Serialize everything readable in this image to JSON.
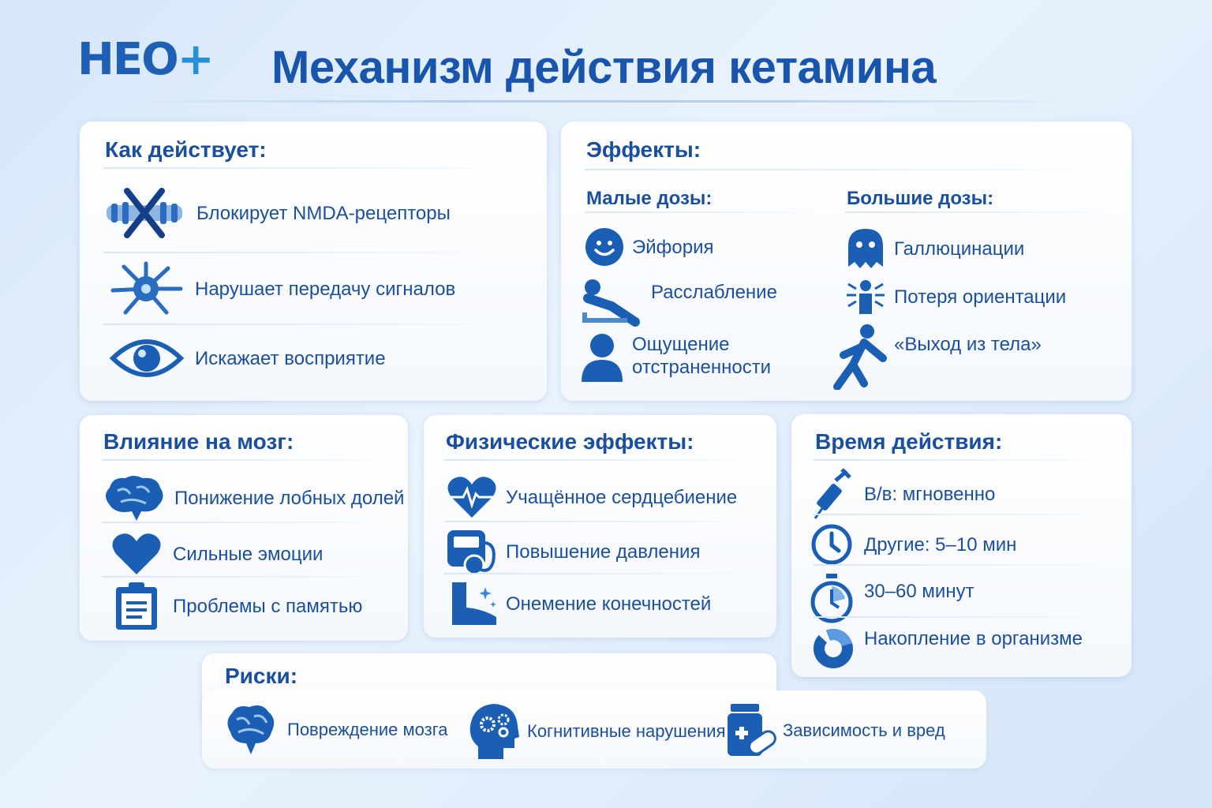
{
  "logo": {
    "text": "НЕО",
    "plus": "+"
  },
  "title": "Механизм действия кетамина",
  "how": {
    "heading": "Как действует:",
    "items": [
      {
        "icon": "blocked-receptor-icon",
        "label": "Блокирует NMDA-рецепторы"
      },
      {
        "icon": "neuron-icon",
        "label": "Нарушает передачу сигналов"
      },
      {
        "icon": "eye-icon",
        "label": "Искажает восприятие"
      }
    ]
  },
  "effects": {
    "heading": "Эффекты:",
    "low": {
      "heading": "Малые дозы:",
      "items": [
        {
          "icon": "smiley-icon",
          "label": "Эйфория"
        },
        {
          "icon": "reclining-person-icon",
          "label": "Расслабление"
        },
        {
          "icon": "person-icon",
          "label": "Ощущение отстраненности"
        }
      ]
    },
    "high": {
      "heading": "Большие дозы:",
      "items": [
        {
          "icon": "ghost-icon",
          "label": "Галлюцинации"
        },
        {
          "icon": "dizzy-person-icon",
          "label": "Потеря ориентации"
        },
        {
          "icon": "floating-person-icon",
          "label": "«Выход из тела»"
        }
      ]
    }
  },
  "brain": {
    "heading": "Влияние на мозг:",
    "items": [
      {
        "icon": "brain-icon",
        "label": "Понижение лобных долей"
      },
      {
        "icon": "heart-icon",
        "label": "Сильные эмоции"
      },
      {
        "icon": "clipboard-icon",
        "label": "Проблемы с памятью"
      }
    ]
  },
  "physical": {
    "heading": "Физические эффекты:",
    "items": [
      {
        "icon": "heartbeat-icon",
        "label": "Учащённое сердцебиение"
      },
      {
        "icon": "blood-pressure-icon",
        "label": "Повышение давления"
      },
      {
        "icon": "numb-foot-icon",
        "label": "Онемение конечностей"
      }
    ]
  },
  "duration": {
    "heading": "Время действия:",
    "items": [
      {
        "icon": "syringe-icon",
        "label": "В/в: мгновенно"
      },
      {
        "icon": "clock-icon",
        "label": "Другие: 5–10 мин"
      },
      {
        "icon": "stopwatch-icon",
        "label": "30–60 минут"
      },
      {
        "icon": "accumulation-ring-icon",
        "label": "Накопление в организме"
      }
    ]
  },
  "risks": {
    "heading": "Риски:",
    "items": [
      {
        "icon": "brain-damage-icon",
        "label": "Повреждение мозга"
      },
      {
        "icon": "head-gears-icon",
        "label": "Когнитивные нарушения"
      },
      {
        "icon": "pill-bottle-icon",
        "label": "Зависимость и вред"
      }
    ]
  },
  "colors": {
    "primary": "#1a55ad",
    "icon": "#1a5fb4",
    "background": "#dbe9f8"
  }
}
